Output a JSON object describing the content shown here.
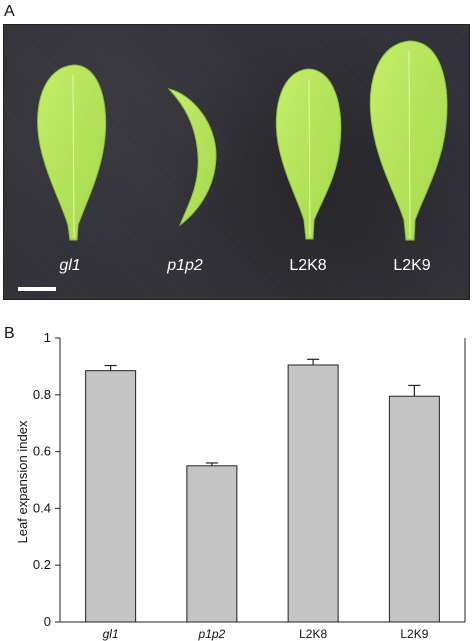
{
  "panels": {
    "a_label": "A",
    "b_label": "B"
  },
  "photo": {
    "leaves": [
      {
        "name": "leaf-gl1",
        "label": "gl1",
        "italic": true
      },
      {
        "name": "leaf-p1p2",
        "label": "p1p2",
        "italic": true
      },
      {
        "name": "leaf-L2K8",
        "label": "L2K8",
        "italic": false
      },
      {
        "name": "leaf-L2K9",
        "label": "L2K9",
        "italic": false
      }
    ],
    "colors": {
      "background": "#33333a",
      "leaf": "#b6e35a",
      "leaf_edge": "#8ac23a",
      "label": "#ffffff"
    }
  },
  "chart_data": {
    "type": "bar",
    "categories": [
      "gl1",
      "p1p2",
      "L2K8",
      "L2K9"
    ],
    "category_italic": [
      true,
      true,
      false,
      false
    ],
    "values": [
      0.885,
      0.55,
      0.905,
      0.795
    ],
    "errors": [
      0.018,
      0.01,
      0.02,
      0.038
    ],
    "title": "",
    "xlabel": "",
    "ylabel": "Leaf expansion index",
    "ylim": [
      0,
      1
    ],
    "yticks": [
      "0",
      "0.2",
      "0.4",
      "0.6",
      "0.8",
      "1"
    ],
    "ytick_values": [
      0,
      0.2,
      0.4,
      0.6,
      0.8,
      1
    ],
    "grid": false,
    "bar_color": "#c4c4c4",
    "edge_color": "#222222"
  }
}
